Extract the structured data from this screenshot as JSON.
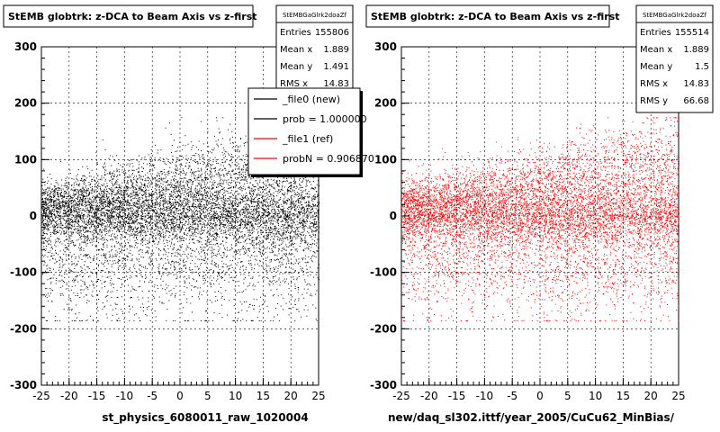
{
  "chart_data": [
    {
      "type": "scatter",
      "title": "StEMB globtrk: z-DCA to Beam Axis vs z-first",
      "xlabel": "st_physics_6080011_raw_1020004",
      "ylabel": "",
      "xlim": [
        -25,
        25
      ],
      "ylim": [
        -300,
        300
      ],
      "x_ticks": [
        "-25",
        "-20",
        "-15",
        "-10",
        "-5",
        "0",
        "5",
        "10",
        "15",
        "20",
        "25"
      ],
      "y_ticks": [
        "300",
        "200",
        "100",
        "0",
        "-100",
        "-200",
        "-300"
      ],
      "grid": true,
      "point_color": "#000000",
      "stats": {
        "name": "StEMBGaGlrk2doaZf",
        "rows": [
          {
            "label": "Entries",
            "value": "155806"
          },
          {
            "label": "Mean x",
            "value": "1.889"
          },
          {
            "label": "Mean y",
            "value": "1.491"
          },
          {
            "label": "RMS x",
            "value": "14.83"
          }
        ]
      },
      "legend": {
        "placement": "top-right",
        "entries": [
          {
            "label": "_file0 (new)",
            "color": "#000000"
          },
          {
            "label": "prob = 1.000000",
            "color": "#000000"
          },
          {
            "label": "_file1 (ref)",
            "color": "#ff0000"
          },
          {
            "label": "probN = 0.906870",
            "color": "#ff0000"
          }
        ]
      }
    },
    {
      "type": "scatter",
      "title": "StEMB globtrk: z-DCA to Beam Axis vs z-first",
      "xlabel": "new/daq_sl302.ittf/year_2005/CuCu62_MinBias/",
      "ylabel": "",
      "xlim": [
        -25,
        25
      ],
      "ylim": [
        -300,
        300
      ],
      "x_ticks": [
        "-25",
        "-20",
        "-15",
        "-10",
        "-5",
        "0",
        "5",
        "10",
        "15",
        "20",
        "25"
      ],
      "y_ticks": [
        "300",
        "200",
        "100",
        "0",
        "-100",
        "-200",
        "-300"
      ],
      "grid": true,
      "point_color": "#ff0000",
      "stats": {
        "name": "StEMBGaGlrk2doaZf",
        "rows": [
          {
            "label": "Entries",
            "value": "155514"
          },
          {
            "label": "Mean x",
            "value": "1.889"
          },
          {
            "label": "Mean y",
            "value": "1.5"
          },
          {
            "label": "RMS x",
            "value": "14.83"
          },
          {
            "label": "RMS y",
            "value": "66.68"
          }
        ]
      }
    }
  ]
}
